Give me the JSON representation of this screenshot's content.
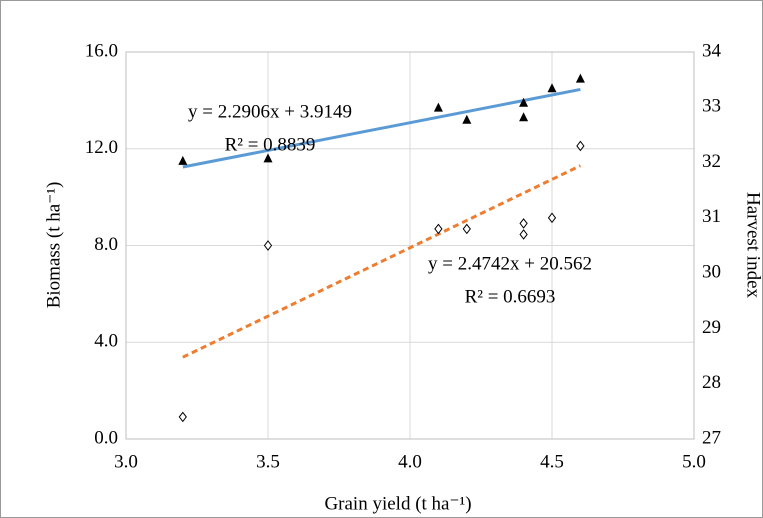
{
  "chart_data": {
    "type": "scatter",
    "xlabel": "Grain yield (t ha⁻¹)",
    "ylabel": "Biomass (t ha⁻¹)",
    "y2label": "Harvest index",
    "xlim": [
      3.0,
      5.0
    ],
    "xticks": [
      {
        "value": 3.0,
        "label": "3.0"
      },
      {
        "value": 3.5,
        "label": "3.5"
      },
      {
        "value": 4.0,
        "label": "4.0"
      },
      {
        "value": 4.5,
        "label": "4.5"
      },
      {
        "value": 5.0,
        "label": "5.0"
      }
    ],
    "ylim": [
      0,
      16
    ],
    "yticks": [
      {
        "value": 0,
        "label": "0.0"
      },
      {
        "value": 4,
        "label": "4.0"
      },
      {
        "value": 8,
        "label": "8.0"
      },
      {
        "value": 12,
        "label": "12.0"
      },
      {
        "value": 16,
        "label": "16.0"
      }
    ],
    "y2lim": [
      27,
      34
    ],
    "y2ticks": [
      27,
      28,
      29,
      30,
      31,
      32,
      33,
      34
    ],
    "grid": true,
    "series": [
      {
        "marker": "triangle",
        "color": "#000000",
        "axis": "y",
        "x": [
          3.2,
          3.5,
          4.1,
          4.2,
          4.4,
          4.4,
          4.5,
          4.6
        ],
        "values": [
          11.5,
          11.6,
          13.7,
          13.2,
          13.9,
          13.3,
          14.5,
          14.9
        ],
        "trend": {
          "slope": 2.2906,
          "intercept": 3.9149,
          "color": "#5b9bd5",
          "dashed": false,
          "equation": "y = 2.2906x + 3.9149",
          "r2": "R² = 0.8839"
        }
      },
      {
        "marker": "diamond",
        "color": "#000000",
        "axis": "y2",
        "x": [
          3.2,
          3.5,
          4.1,
          4.2,
          4.4,
          4.4,
          4.5,
          4.6
        ],
        "values": [
          27.4,
          30.5,
          30.8,
          30.8,
          30.9,
          30.7,
          31.0,
          32.3
        ],
        "trend": {
          "slope": 2.4742,
          "intercept": 20.562,
          "color": "#ed7d31",
          "dashed": true,
          "equation": "y = 2.4742x + 20.562",
          "r2": "R² = 0.6693"
        }
      }
    ]
  }
}
